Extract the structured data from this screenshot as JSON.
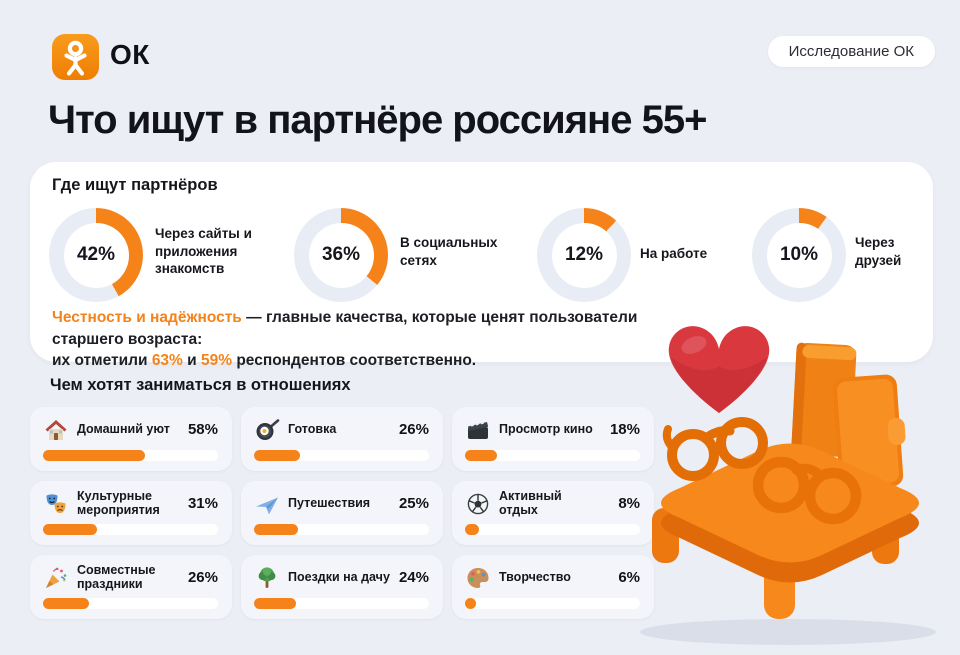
{
  "colors": {
    "accent": "#F5831A",
    "track": "#E8ECF5",
    "page_bg": "#EBEEF4",
    "card_bg": "#F3F5FA",
    "heart_red": "#D93B42",
    "text_dark": "#15161B"
  },
  "header": {
    "logo_label": "ОК",
    "badge": "Исследование ОК",
    "title": "Что ищут в партнёре россияне 55+"
  },
  "where_section": {
    "title": "Где ищут партнёров",
    "items": [
      {
        "value": 42,
        "pct": "42%",
        "label": "Через сайты и приложения знакомств"
      },
      {
        "value": 36,
        "pct": "36%",
        "label": "В социальных сетях"
      },
      {
        "value": 12,
        "pct": "12%",
        "label": "На работе"
      },
      {
        "value": 10,
        "pct": "10%",
        "label": "Через друзей"
      }
    ],
    "note": {
      "lead": "Честность и надёжность",
      "rest": " — главные качества, которые ценят пользователи старшего возраста:",
      "line2_pre": "их отметили ",
      "line2_p1": "63%",
      "line2_and": " и ",
      "line2_p2": "59%",
      "line2_post": " респондентов соответственно."
    }
  },
  "activities_section": {
    "title": "Чем хотят заниматься в отношениях",
    "items": [
      {
        "icon": "house-icon",
        "label": "Домашний уют",
        "pct": "58%",
        "value": 58
      },
      {
        "icon": "frying-pan-icon",
        "label": "Готовка",
        "pct": "26%",
        "value": 26
      },
      {
        "icon": "clapperboard-icon",
        "label": "Просмотр кино",
        "pct": "18%",
        "value": 18
      },
      {
        "icon": "theater-masks-icon",
        "label": "Культурные мероприятия",
        "pct": "31%",
        "value": 31
      },
      {
        "icon": "airplane-icon",
        "label": "Путешествия",
        "pct": "25%",
        "value": 25
      },
      {
        "icon": "soccer-ball-icon",
        "label": "Активный отдых",
        "pct": "8%",
        "value": 8
      },
      {
        "icon": "party-popper-icon",
        "label": "Совместные праздники",
        "pct": "26%",
        "value": 26
      },
      {
        "icon": "tree-icon",
        "label": "Поездки на дачу",
        "pct": "24%",
        "value": 24
      },
      {
        "icon": "palette-icon",
        "label": "Творчество",
        "pct": "6%",
        "value": 6
      }
    ]
  },
  "chart_data": [
    {
      "type": "pie",
      "title": "Где ищут партнёров",
      "categories": [
        "Через сайты и приложения знакомств",
        "В социальных сетях",
        "На работе",
        "Через друзей"
      ],
      "values": [
        42,
        36,
        12,
        10
      ],
      "unit": "%",
      "style": "four separate donut gauges, orange arc on light track, value centered",
      "annotation": "Честность и надёжность — главные качества, которые ценят пользователи старшего возраста: их отметили 63% и 59% респондентов соответственно."
    },
    {
      "type": "bar",
      "title": "Чем хотят заниматься в отношениях",
      "categories": [
        "Домашний уют",
        "Готовка",
        "Просмотр кино",
        "Культурные мероприятия",
        "Путешествия",
        "Активный отдых",
        "Совместные праздники",
        "Поездки на дачу",
        "Творчество"
      ],
      "values": [
        58,
        26,
        18,
        31,
        25,
        8,
        26,
        24,
        6
      ],
      "unit": "%",
      "xlim": [
        0,
        100
      ],
      "style": "horizontal progress bars in 3x3 card grid, orange fill on white track"
    }
  ]
}
